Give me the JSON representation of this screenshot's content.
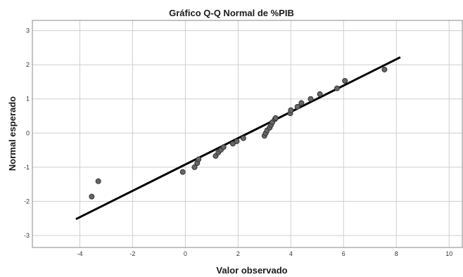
{
  "chart_data": {
    "type": "scatter",
    "title": "Gráfico Q-Q Normal de %PIB",
    "xlabel": "Valor observado",
    "ylabel": "Normal esperado",
    "xlim": [
      -5.8,
      10.5
    ],
    "ylim": [
      -3.35,
      3.3
    ],
    "x_ticks": [
      -4,
      -2,
      0,
      2,
      4,
      6,
      8,
      10
    ],
    "y_ticks": [
      3,
      2,
      1,
      0,
      -1,
      -2,
      -3
    ],
    "x_tick_labels": [
      "-4",
      "-2",
      "0",
      "2",
      "4",
      "6",
      "8",
      "10"
    ],
    "y_tick_labels": [
      "3",
      "2",
      "1",
      "0",
      "-1",
      "-2",
      "-3"
    ],
    "grid": true,
    "reference_line": {
      "x": [
        -4.15,
        8.15
      ],
      "y": [
        -2.52,
        2.22
      ]
    },
    "series": [
      {
        "x": [
          -3.55,
          -3.3,
          -0.1,
          0.35,
          0.45,
          0.5,
          1.15,
          1.25,
          1.35,
          1.45,
          1.8,
          1.95,
          2.2,
          3.0,
          3.05,
          3.1,
          3.2,
          3.25,
          3.3,
          3.4,
          3.42,
          3.98,
          4.0,
          4.25,
          4.4,
          4.75,
          5.1,
          5.75,
          6.05,
          7.55
        ],
        "y": [
          -1.86,
          -1.41,
          -1.14,
          -1.0,
          -0.88,
          -0.77,
          -0.67,
          -0.57,
          -0.49,
          -0.41,
          -0.31,
          -0.24,
          -0.15,
          -0.08,
          0.0,
          0.08,
          0.16,
          0.24,
          0.32,
          0.41,
          0.44,
          0.58,
          0.67,
          0.77,
          0.88,
          1.0,
          1.14,
          1.31,
          1.53,
          1.86
        ]
      }
    ],
    "colors": {
      "point_fill": "#666666",
      "point_stroke": "#333333",
      "line": "#000000",
      "grid": "#cfcfcf",
      "frame": "#8a8a8a"
    }
  }
}
